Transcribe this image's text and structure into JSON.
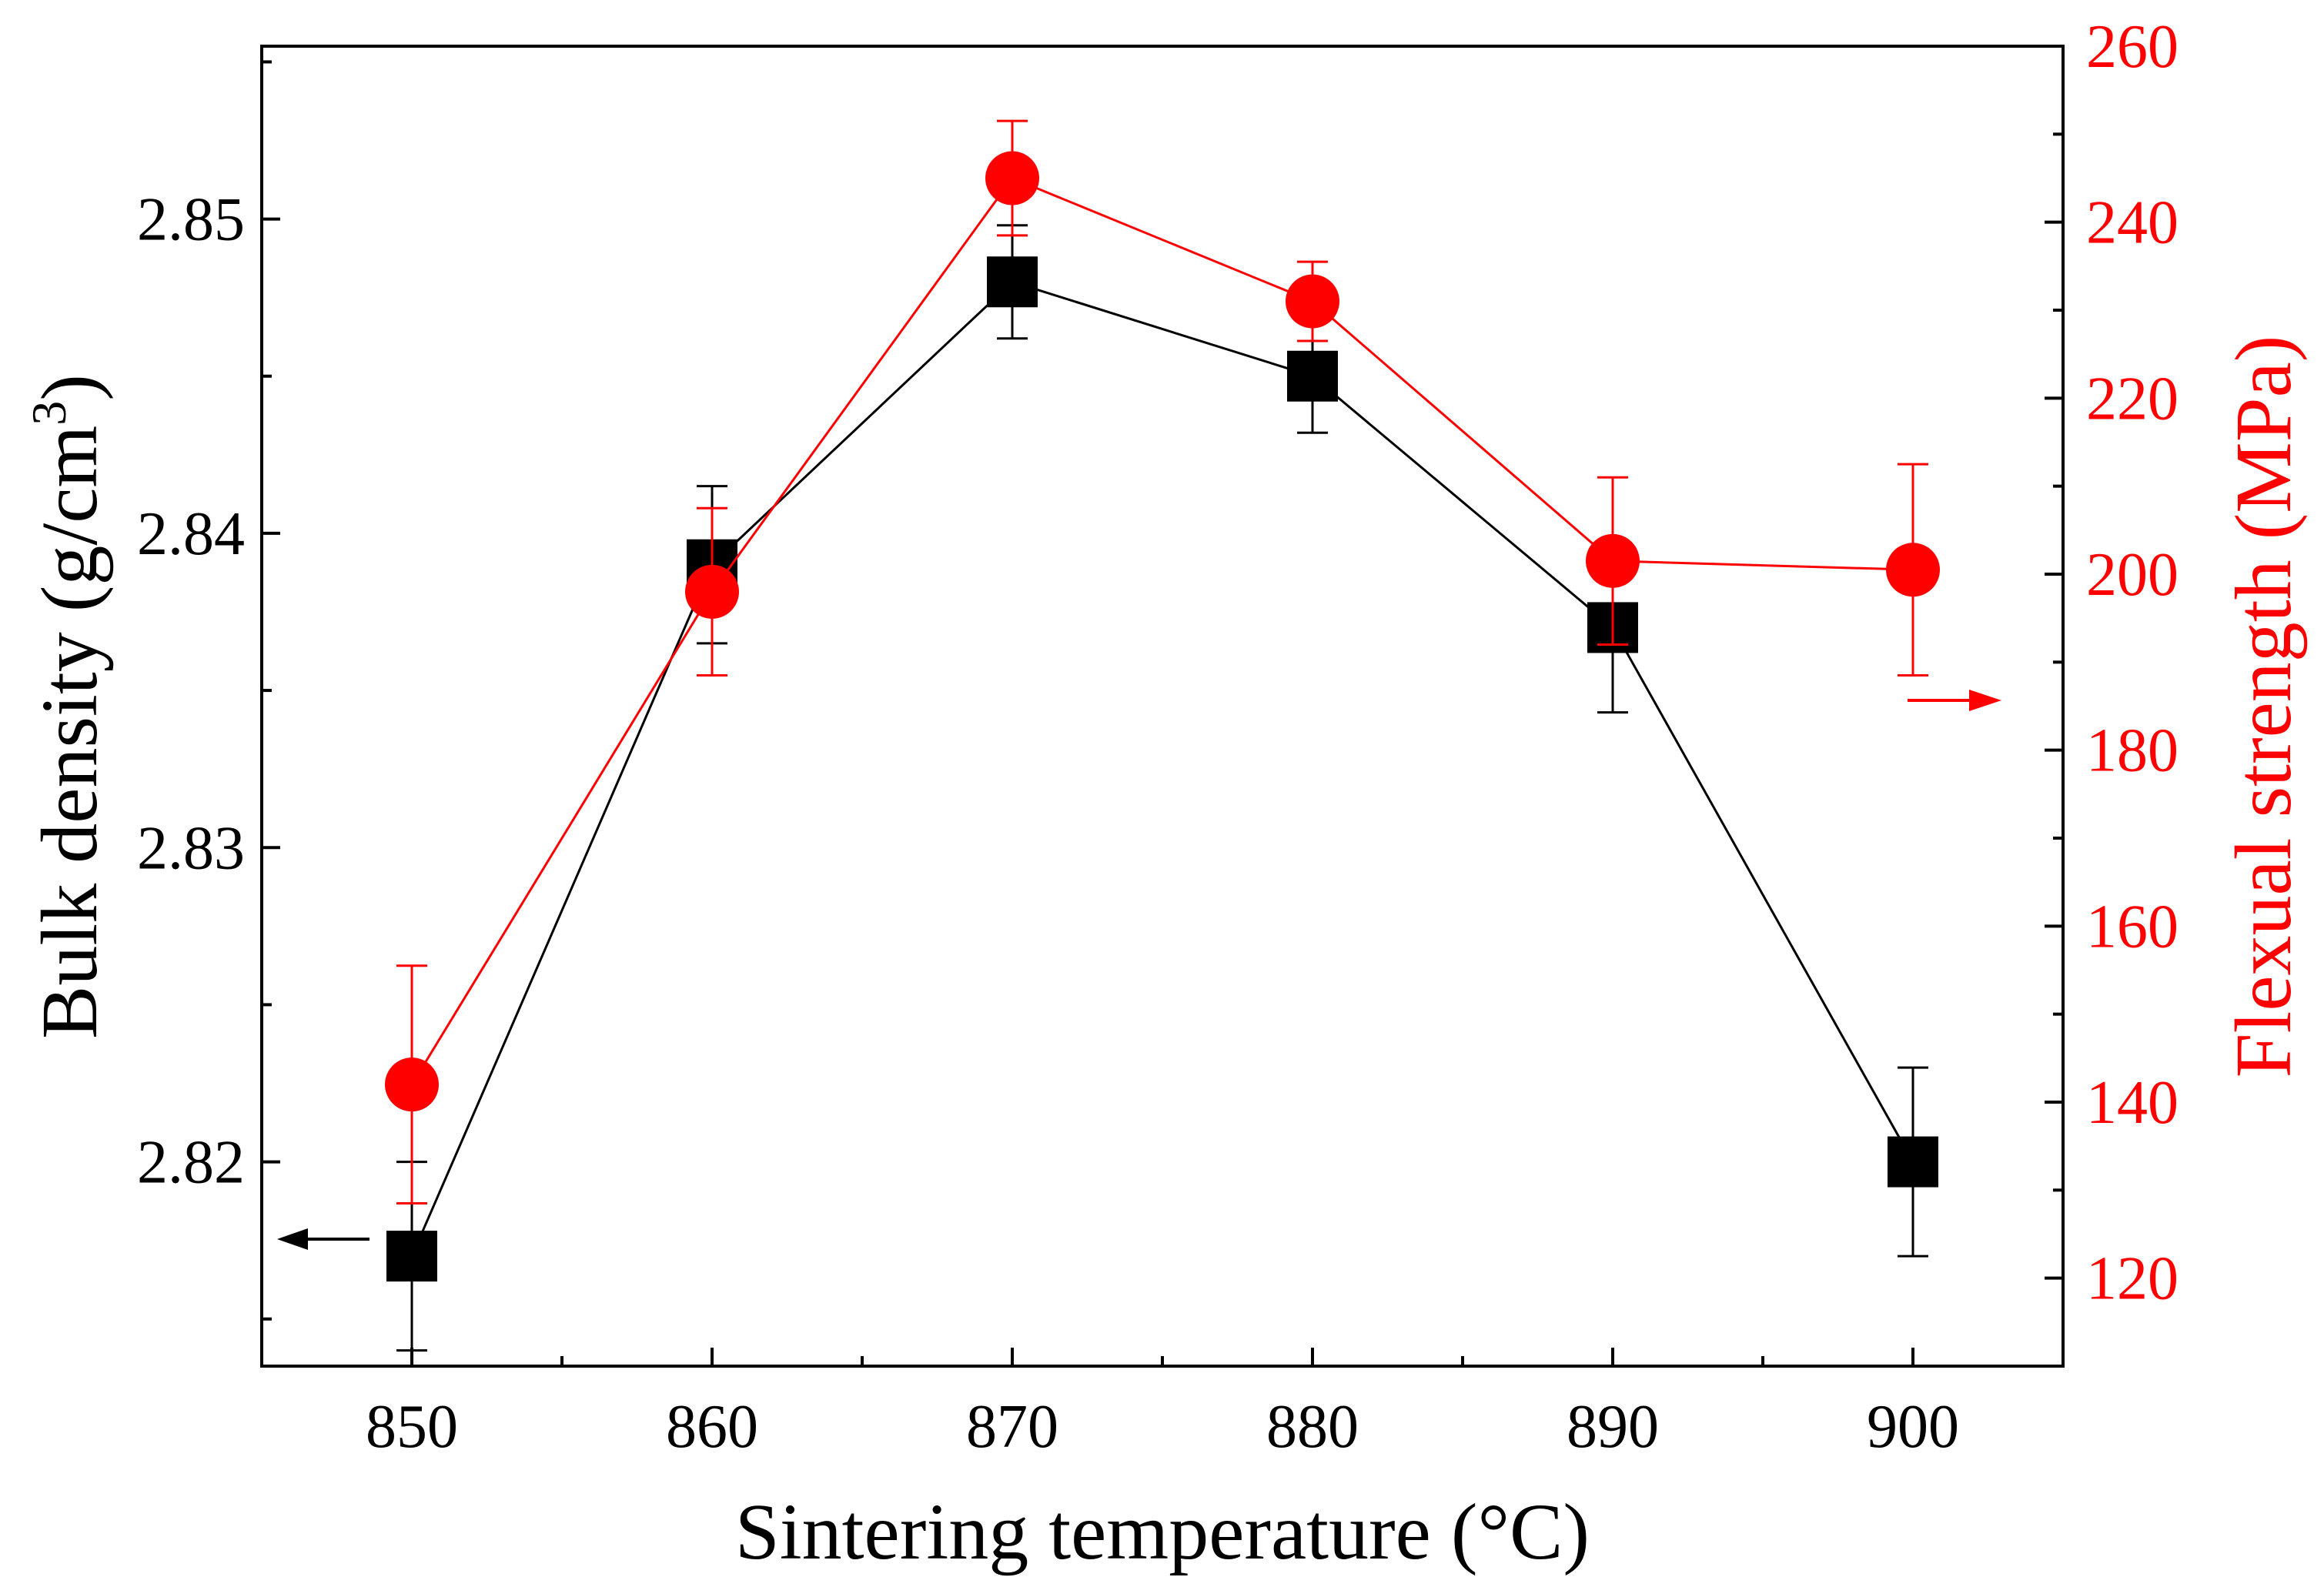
{
  "chart_data": {
    "type": "line",
    "x": [
      850,
      860,
      870,
      880,
      890,
      900
    ],
    "xlabel": "Sintering temperature (°C)",
    "xlim": [
      845,
      905
    ],
    "x_ticks": [
      "850",
      "860",
      "870",
      "880",
      "890",
      "900"
    ],
    "left_axis": {
      "label_main": "Bulk density (g/cm",
      "label_sup": "3",
      "label_close": ")",
      "ylim": [
        2.8135,
        2.8555
      ],
      "ticks": [
        "2.82",
        "2.83",
        "2.84",
        "2.85"
      ],
      "color": "#000000"
    },
    "right_axis": {
      "label": "Flexual strength (MPa)",
      "ylim": [
        110,
        260
      ],
      "ticks": [
        "120",
        "140",
        "160",
        "180",
        "200",
        "220",
        "240",
        "260"
      ],
      "color": "#ff0000"
    },
    "series": [
      {
        "name": "Bulk density",
        "axis": "left",
        "marker": "square",
        "color": "#000000",
        "values": [
          2.817,
          2.839,
          2.848,
          2.845,
          2.837,
          2.82
        ],
        "errors": [
          0.003,
          0.0025,
          0.0018,
          0.0018,
          0.0027,
          0.003
        ]
      },
      {
        "name": "Flexual strength",
        "axis": "right",
        "marker": "circle",
        "color": "#ff0000",
        "values": [
          142,
          198,
          245,
          231,
          201.5,
          200.5
        ],
        "errors": [
          13.5,
          9.5,
          6.5,
          4.5,
          9.5,
          12
        ]
      }
    ],
    "legend": "none"
  }
}
